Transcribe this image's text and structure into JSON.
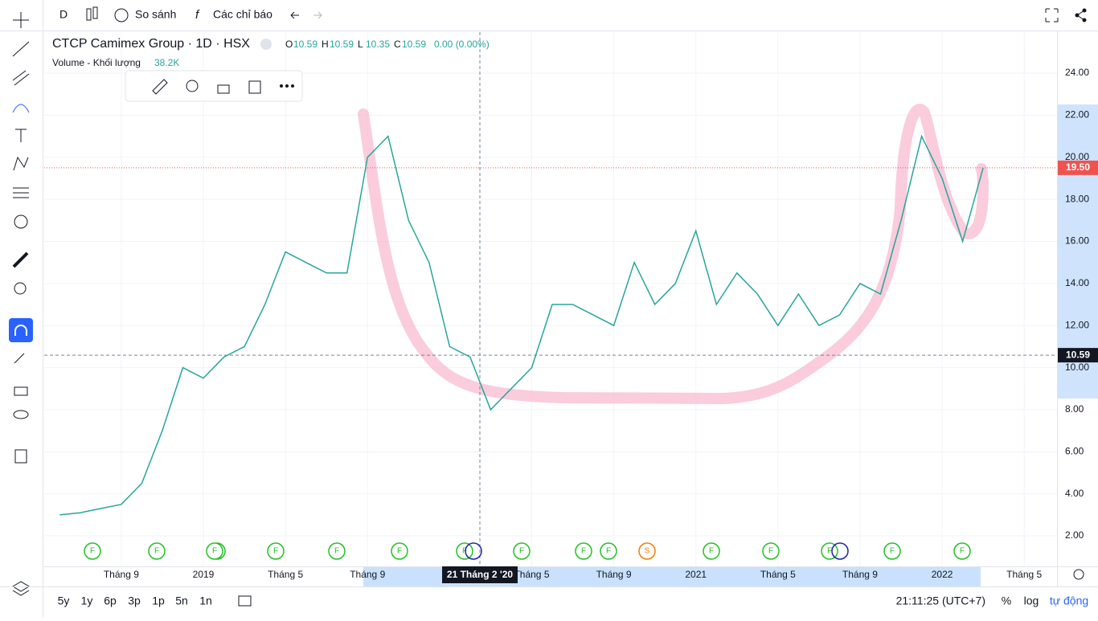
{
  "toolbar": {
    "interval": "D",
    "compare": "So sánh",
    "indicators": "Các chỉ báo"
  },
  "header": {
    "symbol": "CTCP Camimex Group · 1D · HSX",
    "ohlc": [
      {
        "label": "O",
        "value": "10.59"
      },
      {
        "label": "H",
        "value": "10.59"
      },
      {
        "label": "L",
        "value": "10.35"
      },
      {
        "label": "C",
        "value": "10.59"
      }
    ],
    "change": "0.00 (0.00%)",
    "volume_label": "Volume - Khối lượng",
    "volume_value": "38.2K"
  },
  "chart_data": {
    "type": "line",
    "categories": [
      null,
      null,
      null,
      "Tháng 9",
      null,
      null,
      null,
      "2019",
      null,
      null,
      null,
      "Tháng 5",
      null,
      null,
      null,
      "Tháng 9",
      null,
      null,
      null,
      null,
      null,
      null,
      null,
      "Tháng 5",
      null,
      null,
      null,
      "Tháng 9",
      null,
      null,
      null,
      "2021",
      null,
      null,
      null,
      "Tháng 5",
      null,
      null,
      null,
      "Tháng 9",
      null,
      null,
      null,
      "2022",
      null,
      null,
      null,
      "Tháng 5"
    ],
    "series": [
      {
        "name": "CTCP Camimex Group",
        "color": "#26a69a",
        "values": [
          3.0,
          3.1,
          3.3,
          3.5,
          4.5,
          7,
          10,
          9.5,
          10.5,
          11,
          13,
          15.5,
          15,
          14.5,
          14.5,
          20,
          21,
          17,
          15,
          11,
          10.5,
          8,
          9,
          10,
          13,
          13,
          12.5,
          12,
          15,
          13,
          14,
          16.5,
          13,
          14.5,
          13.5,
          12,
          13.5,
          12,
          12.5,
          14,
          13.5,
          17,
          21,
          19,
          16,
          19.5,
          null,
          null
        ]
      }
    ],
    "ylim": [
      0.55,
      25.95
    ],
    "yticks": [
      {
        "value": 2,
        "label": "2.00"
      },
      {
        "value": 4,
        "label": "4.00"
      },
      {
        "value": 6,
        "label": "6.00"
      },
      {
        "value": 8,
        "label": "8.00"
      },
      {
        "value": 10,
        "label": "10.00"
      },
      {
        "value": 12,
        "label": "12.00"
      },
      {
        "value": 14,
        "label": "14.00"
      },
      {
        "value": 16,
        "label": "16.00"
      },
      {
        "value": 18,
        "label": "18.00"
      },
      {
        "value": 20,
        "label": "20.00"
      },
      {
        "value": 22,
        "label": "22.00"
      },
      {
        "value": 24,
        "label": "24.00"
      }
    ],
    "grid": true,
    "last_price": {
      "value": 19.5,
      "label": "19.50"
    },
    "crosshair_price": {
      "value": 10.59,
      "label": "10.59"
    },
    "crosshair_date": "21 Tháng 2 '20",
    "events": [
      "F",
      "F",
      "F",
      "F",
      "F",
      "F",
      "F",
      "F",
      "F",
      "F",
      "S",
      "F",
      "F",
      "F",
      "F",
      "F",
      "F"
    ]
  },
  "bottom_bar": {
    "ranges": [
      "5y",
      "1y",
      "6p",
      "3p",
      "1p",
      "5n",
      "1n"
    ],
    "time": "21:11:25 (UTC+7)",
    "percent": "%",
    "log": "log",
    "auto": "tự động"
  }
}
